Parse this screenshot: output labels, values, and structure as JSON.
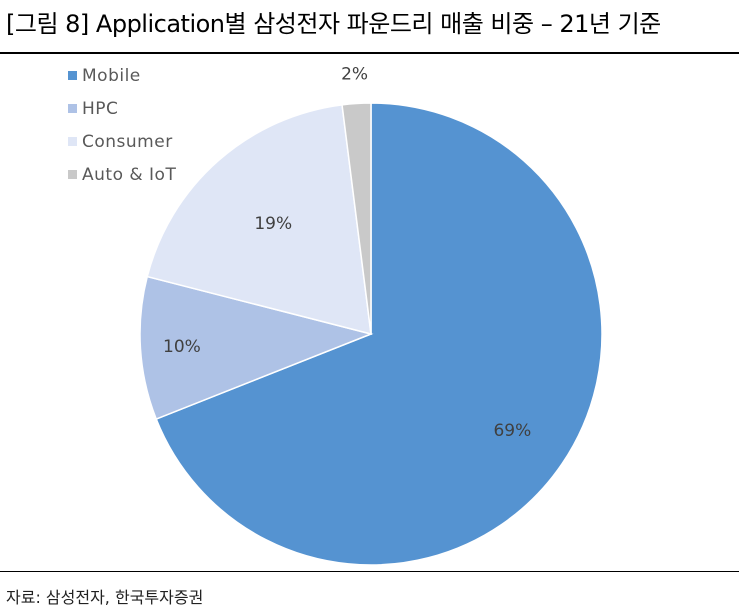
{
  "header": {
    "title": "[그림 8] Application별 삼성전자 파운드리 매출 비중 – 21년 기준"
  },
  "footer": {
    "source": "자료: 삼성전자, 한국투자증권"
  },
  "chart_data": {
    "type": "pie",
    "categories": [
      "Mobile",
      "HPC",
      "Consumer",
      "Auto & IoT"
    ],
    "values": [
      69,
      10,
      19,
      2
    ],
    "value_labels": [
      "69%",
      "10%",
      "19%",
      "2%"
    ],
    "colors": [
      "#5593d1",
      "#aec2e6",
      "#dfe6f6",
      "#c9c9c9"
    ],
    "legend_position": "top-left",
    "start": "12 o'clock",
    "direction": "clockwise"
  }
}
